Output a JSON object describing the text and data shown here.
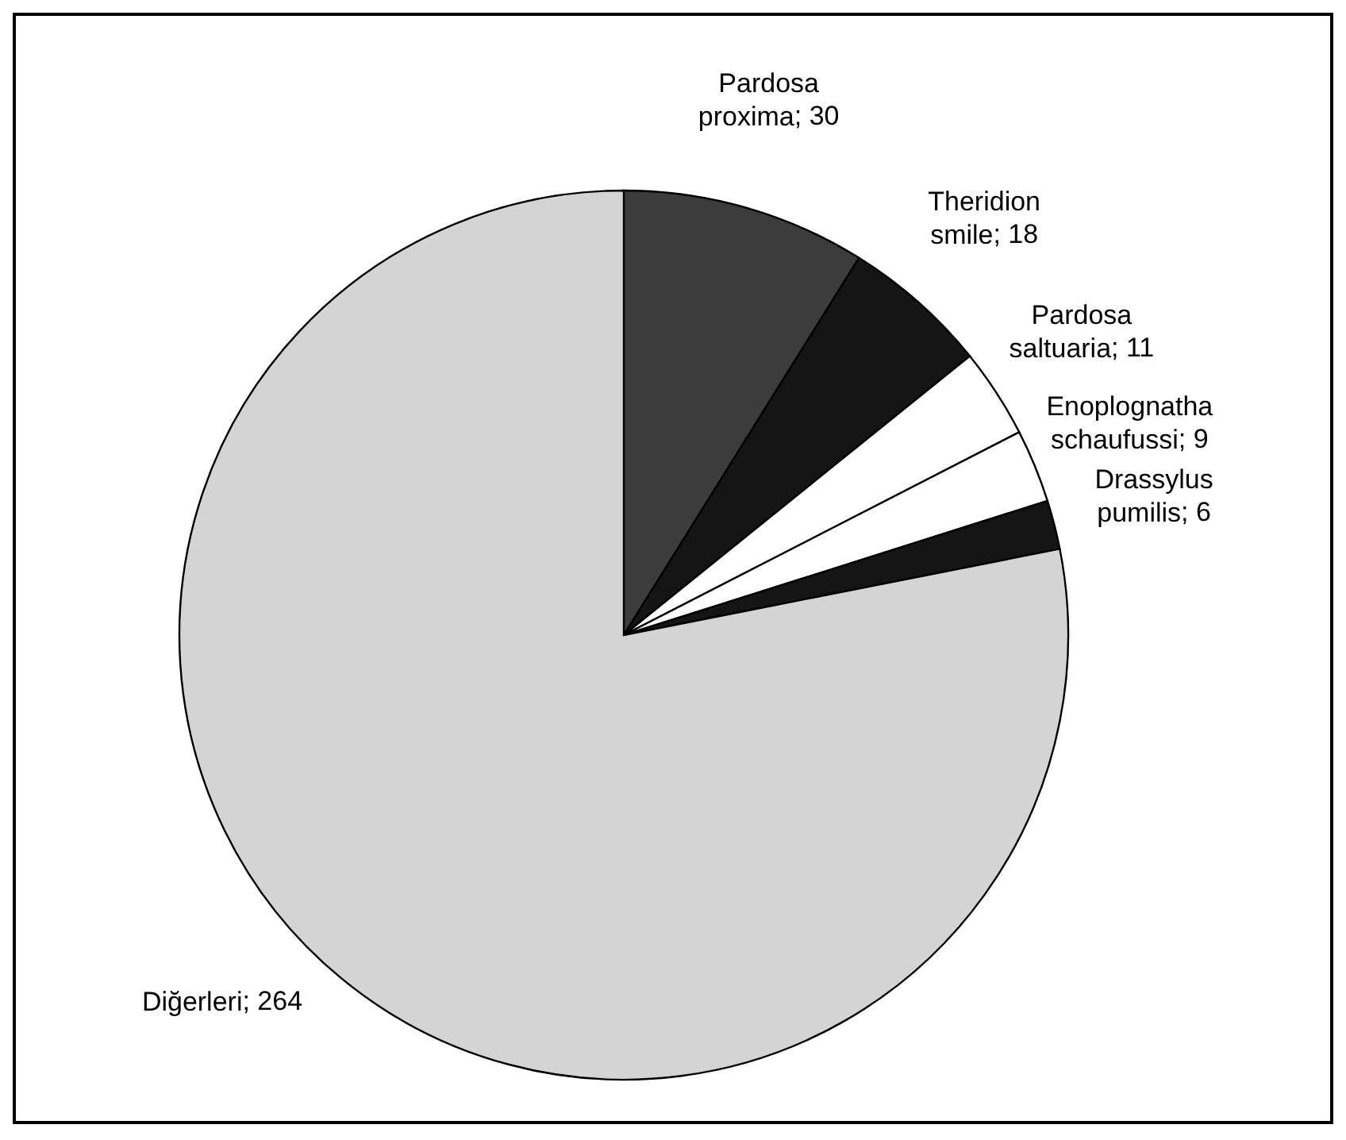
{
  "chart_data": {
    "type": "pie",
    "categories": [
      "Pardosa proxima",
      "Theridion smile",
      "Pardosa saltuaria",
      "Enoplognatha schaufussi",
      "Drassylus pumilis",
      "Diğerleri"
    ],
    "values": [
      30,
      18,
      11,
      9,
      6,
      264
    ],
    "colors": [
      "#3c3c3c",
      "#151515",
      "#ffffff",
      "#ffffff",
      "#151515",
      "#d4d4d4"
    ],
    "value_labels": [
      "; 30",
      "; 18",
      "; 11",
      "; 9",
      "; 6",
      "; 264"
    ]
  }
}
